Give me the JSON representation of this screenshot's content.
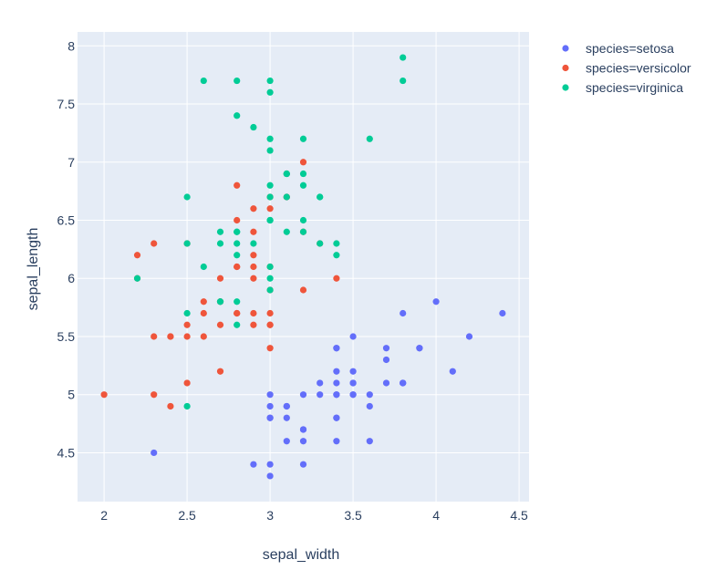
{
  "chart_data": {
    "type": "scatter",
    "title": "",
    "xlabel": "sepal_width",
    "ylabel": "sepal_length",
    "xlim": [
      1.84,
      4.56
    ],
    "ylim": [
      4.08,
      8.12
    ],
    "xticks": [
      "2",
      "2.5",
      "3",
      "3.5",
      "4",
      "4.5"
    ],
    "yticks": [
      "4.5",
      "5",
      "5.5",
      "6",
      "6.5",
      "7",
      "7.5",
      "8"
    ],
    "grid": true,
    "legend_position": "top-right",
    "colors": {
      "plot_bg": "#e5ecf6",
      "grid": "#ffffff",
      "text": "#2a3f5f"
    },
    "series": [
      {
        "name": "species=setosa",
        "color": "#636efa",
        "points": [
          [
            3.5,
            5.1
          ],
          [
            3.0,
            4.9
          ],
          [
            3.2,
            4.7
          ],
          [
            3.1,
            4.6
          ],
          [
            3.6,
            5.0
          ],
          [
            3.9,
            5.4
          ],
          [
            3.4,
            4.6
          ],
          [
            3.4,
            5.0
          ],
          [
            2.9,
            4.4
          ],
          [
            3.1,
            4.9
          ],
          [
            3.7,
            5.4
          ],
          [
            3.4,
            4.8
          ],
          [
            3.0,
            4.8
          ],
          [
            3.0,
            4.3
          ],
          [
            4.0,
            5.8
          ],
          [
            4.4,
            5.7
          ],
          [
            3.9,
            5.4
          ],
          [
            3.5,
            5.1
          ],
          [
            3.8,
            5.7
          ],
          [
            3.8,
            5.1
          ],
          [
            3.4,
            5.4
          ],
          [
            3.7,
            5.1
          ],
          [
            3.6,
            4.6
          ],
          [
            3.3,
            5.1
          ],
          [
            3.4,
            4.8
          ],
          [
            3.0,
            5.0
          ],
          [
            3.4,
            5.0
          ],
          [
            3.5,
            5.2
          ],
          [
            3.4,
            5.2
          ],
          [
            3.2,
            4.7
          ],
          [
            3.1,
            4.8
          ],
          [
            3.4,
            5.4
          ],
          [
            4.1,
            5.2
          ],
          [
            4.2,
            5.5
          ],
          [
            3.1,
            4.9
          ],
          [
            3.2,
            5.0
          ],
          [
            3.5,
            5.5
          ],
          [
            3.6,
            4.9
          ],
          [
            3.0,
            4.4
          ],
          [
            3.4,
            5.1
          ],
          [
            3.5,
            5.0
          ],
          [
            2.3,
            4.5
          ],
          [
            3.2,
            4.4
          ],
          [
            3.5,
            5.0
          ],
          [
            3.8,
            5.1
          ],
          [
            3.0,
            4.8
          ],
          [
            3.8,
            5.1
          ],
          [
            3.2,
            4.6
          ],
          [
            3.7,
            5.3
          ],
          [
            3.3,
            5.0
          ]
        ]
      },
      {
        "name": "species=versicolor",
        "color": "#EF553B",
        "points": [
          [
            3.2,
            7.0
          ],
          [
            3.2,
            6.4
          ],
          [
            3.1,
            6.9
          ],
          [
            2.3,
            5.5
          ],
          [
            2.8,
            6.5
          ],
          [
            2.8,
            5.7
          ],
          [
            3.3,
            6.3
          ],
          [
            2.4,
            4.9
          ],
          [
            2.9,
            6.6
          ],
          [
            2.7,
            5.2
          ],
          [
            2.0,
            5.0
          ],
          [
            3.0,
            5.9
          ],
          [
            2.2,
            6.0
          ],
          [
            2.9,
            6.1
          ],
          [
            2.9,
            5.6
          ],
          [
            3.1,
            6.7
          ],
          [
            3.0,
            5.6
          ],
          [
            2.7,
            5.8
          ],
          [
            2.2,
            6.2
          ],
          [
            2.5,
            5.6
          ],
          [
            3.2,
            5.9
          ],
          [
            2.8,
            6.1
          ],
          [
            2.5,
            6.3
          ],
          [
            2.8,
            6.1
          ],
          [
            2.9,
            6.4
          ],
          [
            3.0,
            6.6
          ],
          [
            2.8,
            6.8
          ],
          [
            3.0,
            6.7
          ],
          [
            2.9,
            6.0
          ],
          [
            2.6,
            5.7
          ],
          [
            2.4,
            5.5
          ],
          [
            2.4,
            5.5
          ],
          [
            2.7,
            5.8
          ],
          [
            2.7,
            6.0
          ],
          [
            3.0,
            5.4
          ],
          [
            3.4,
            6.0
          ],
          [
            3.1,
            6.7
          ],
          [
            2.3,
            6.3
          ],
          [
            3.0,
            5.6
          ],
          [
            2.5,
            5.5
          ],
          [
            2.6,
            5.5
          ],
          [
            3.0,
            6.1
          ],
          [
            2.6,
            5.8
          ],
          [
            2.3,
            5.0
          ],
          [
            2.7,
            5.6
          ],
          [
            3.0,
            5.7
          ],
          [
            2.9,
            5.7
          ],
          [
            2.9,
            6.2
          ],
          [
            2.5,
            5.1
          ],
          [
            2.8,
            5.7
          ]
        ]
      },
      {
        "name": "species=virginica",
        "color": "#00cc96",
        "points": [
          [
            3.3,
            6.3
          ],
          [
            2.7,
            5.8
          ],
          [
            3.0,
            7.1
          ],
          [
            2.9,
            6.3
          ],
          [
            3.0,
            6.5
          ],
          [
            3.0,
            7.6
          ],
          [
            2.5,
            4.9
          ],
          [
            2.9,
            7.3
          ],
          [
            2.5,
            6.7
          ],
          [
            3.6,
            7.2
          ],
          [
            3.2,
            6.5
          ],
          [
            2.7,
            6.4
          ],
          [
            3.0,
            6.8
          ],
          [
            2.5,
            5.7
          ],
          [
            2.8,
            5.8
          ],
          [
            3.2,
            6.4
          ],
          [
            3.0,
            6.5
          ],
          [
            3.8,
            7.7
          ],
          [
            2.6,
            7.7
          ],
          [
            2.2,
            6.0
          ],
          [
            3.2,
            6.9
          ],
          [
            2.8,
            5.6
          ],
          [
            2.8,
            7.7
          ],
          [
            2.7,
            6.3
          ],
          [
            3.3,
            6.7
          ],
          [
            3.2,
            7.2
          ],
          [
            2.8,
            6.2
          ],
          [
            3.0,
            6.1
          ],
          [
            2.8,
            6.4
          ],
          [
            3.0,
            7.2
          ],
          [
            2.8,
            7.4
          ],
          [
            3.8,
            7.9
          ],
          [
            2.8,
            6.4
          ],
          [
            2.8,
            6.3
          ],
          [
            2.6,
            6.1
          ],
          [
            3.0,
            7.7
          ],
          [
            3.4,
            6.3
          ],
          [
            3.1,
            6.4
          ],
          [
            3.0,
            6.0
          ],
          [
            3.1,
            6.9
          ],
          [
            3.1,
            6.7
          ],
          [
            3.1,
            6.9
          ],
          [
            2.7,
            5.8
          ],
          [
            3.2,
            6.8
          ],
          [
            3.3,
            6.7
          ],
          [
            3.0,
            6.7
          ],
          [
            2.5,
            6.3
          ],
          [
            3.0,
            6.5
          ],
          [
            3.4,
            6.2
          ],
          [
            3.0,
            5.9
          ]
        ]
      }
    ]
  }
}
